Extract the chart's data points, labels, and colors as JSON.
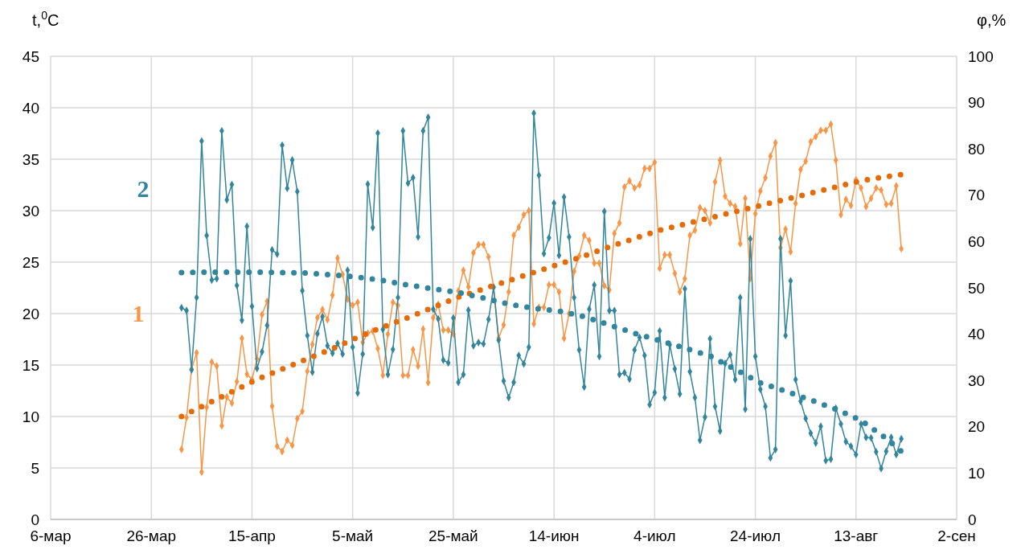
{
  "chart_data": {
    "type": "line",
    "ylabel": "t,$^{0}$C",
    "y2label": "φ,%",
    "xlim": [
      "--03-06",
      "--09-02"
    ],
    "xticks": [
      {
        "value": "--03-06",
        "label": "6-мар"
      },
      {
        "value": "--03-26",
        "label": "26-мар"
      },
      {
        "value": "--04-15",
        "label": "15-апр"
      },
      {
        "value": "--05-05",
        "label": "5-май"
      },
      {
        "value": "--05-25",
        "label": "25-май"
      },
      {
        "value": "--06-14",
        "label": "14-июн"
      },
      {
        "value": "--07-04",
        "label": "4-июл"
      },
      {
        "value": "--07-24",
        "label": "24-июл"
      },
      {
        "value": "--08-13",
        "label": "13-авг"
      },
      {
        "value": "--09-02",
        "label": "2-сен"
      }
    ],
    "ylim": [
      0,
      45
    ],
    "yticks": [
      0,
      5,
      10,
      15,
      20,
      25,
      30,
      35,
      40,
      45
    ],
    "y2lim": [
      0,
      100
    ],
    "y2ticks": [
      0,
      10,
      20,
      30,
      40,
      50,
      60,
      70,
      80,
      90,
      100
    ],
    "grid": true,
    "marker": "diamond",
    "x": [
      "--04-01",
      "--04-02",
      "--04-03",
      "--04-04",
      "--04-05",
      "--04-06",
      "--04-07",
      "--04-08",
      "--04-09",
      "--04-10",
      "--04-11",
      "--04-12",
      "--04-13",
      "--04-14",
      "--04-15",
      "--04-16",
      "--04-17",
      "--04-18",
      "--04-19",
      "--04-20",
      "--04-21",
      "--04-22",
      "--04-23",
      "--04-24",
      "--04-25",
      "--04-26",
      "--04-27",
      "--04-28",
      "--04-29",
      "--04-30",
      "--05-01",
      "--05-02",
      "--05-03",
      "--05-04",
      "--05-05",
      "--05-06",
      "--05-07",
      "--05-08",
      "--05-09",
      "--05-10",
      "--05-11",
      "--05-12",
      "--05-13",
      "--05-14",
      "--05-15",
      "--05-16",
      "--05-17",
      "--05-18",
      "--05-19",
      "--05-20",
      "--05-21",
      "--05-22",
      "--05-23",
      "--05-24",
      "--05-25",
      "--05-26",
      "--05-27",
      "--05-28",
      "--05-29",
      "--05-30",
      "--05-31",
      "--06-01",
      "--06-02",
      "--06-03",
      "--06-04",
      "--06-05",
      "--06-06",
      "--06-07",
      "--06-08",
      "--06-09",
      "--06-10",
      "--06-11",
      "--06-12",
      "--06-13",
      "--06-14",
      "--06-15",
      "--06-16",
      "--06-17",
      "--06-18",
      "--06-19",
      "--06-20",
      "--06-21",
      "--06-22",
      "--06-23",
      "--06-24",
      "--06-25",
      "--06-26",
      "--06-27",
      "--06-28",
      "--06-29",
      "--06-30",
      "--07-01",
      "--07-02",
      "--07-03",
      "--07-04",
      "--07-05",
      "--07-06",
      "--07-07",
      "--07-08",
      "--07-09",
      "--07-10",
      "--07-11",
      "--07-12",
      "--07-13",
      "--07-14",
      "--07-15",
      "--07-16",
      "--07-17",
      "--07-18",
      "--07-19",
      "--07-20",
      "--07-21",
      "--07-22",
      "--07-23",
      "--07-24",
      "--07-25",
      "--07-26",
      "--07-27",
      "--07-28",
      "--07-29",
      "--07-30",
      "--07-31",
      "--08-01",
      "--08-02",
      "--08-03",
      "--08-04",
      "--08-05",
      "--08-06",
      "--08-07",
      "--08-08",
      "--08-09",
      "--08-10",
      "--08-11",
      "--08-12",
      "--08-13",
      "--08-14",
      "--08-15",
      "--08-16",
      "--08-17",
      "--08-18",
      "--08-19",
      "--08-20",
      "--08-21",
      "--08-22"
    ],
    "series": [
      {
        "name": "1",
        "color": "#f79646",
        "values": [
          6.8,
          9.9,
          14.6,
          16.2,
          4.6,
          10.9,
          15.3,
          14.9,
          9.1,
          11.9,
          11.3,
          13.4,
          17.6,
          14.1,
          13.6,
          15.6,
          19.9,
          21.2,
          11.0,
          7.1,
          6.6,
          7.7,
          7.2,
          9.8,
          10.5,
          14.4,
          17.0,
          19.6,
          20.4,
          19.4,
          21.8,
          25.4,
          23.8,
          21.4,
          20.8,
          21.1,
          17.2,
          18.1,
          18.3,
          16.6,
          14.0,
          18.0,
          21.1,
          20.8,
          14.0,
          14.0,
          16.5,
          14.9,
          18.5,
          13.3,
          19.6,
          20.9,
          18.4,
          18.4,
          18.0,
          22.2,
          24.2,
          22.6,
          25.9,
          26.7,
          26.7,
          25.5,
          22.6,
          17.6,
          18.9,
          22.1,
          27.6,
          28.4,
          29.6,
          30.0,
          19.0,
          20.6,
          20.6,
          22.8,
          22.8,
          22.1,
          17.6,
          20.0,
          24.1,
          25.6,
          27.6,
          27.1,
          24.9,
          24.9,
          22.7,
          22.3,
          27.8,
          28.8,
          32.3,
          32.9,
          32.2,
          32.5,
          34.1,
          34.1,
          34.7,
          24.4,
          25.7,
          25.7,
          23.9,
          22.1,
          23.4,
          27.6,
          28.1,
          30.3,
          30.0,
          28.8,
          32.8,
          34.9,
          31.4,
          30.7,
          30.4,
          26.8,
          31.2,
          23.4,
          29.7,
          31.9,
          33.2,
          35.3,
          36.6,
          26.4,
          28.2,
          26.0,
          30.7,
          34.0,
          34.8,
          36.7,
          37.2,
          37.8,
          37.8,
          38.4,
          34.9,
          29.6,
          31.1,
          30.5,
          33.0,
          32.2,
          30.4,
          31.2,
          32.2,
          32.0,
          30.6,
          30.7,
          32.4,
          26.3
        ]
      },
      {
        "name": "2",
        "color": "#31859c",
        "axis": "y2",
        "values": [
          45.7,
          45.1,
          32.3,
          47.9,
          81.7,
          61.3,
          51.7,
          52.0,
          83.9,
          69.0,
          72.3,
          50.5,
          43.0,
          63.3,
          46.0,
          32.6,
          36.2,
          41.9,
          58.2,
          57.3,
          80.8,
          71.5,
          77.6,
          70.8,
          49.4,
          39.7,
          31.8,
          40.1,
          43.8,
          37.5,
          35.9,
          38.0,
          35.7,
          53.8,
          37.2,
          27.3,
          35.7,
          72.4,
          63.0,
          83.4,
          41.0,
          31.3,
          36.7,
          47.9,
          83.9,
          72.6,
          73.8,
          61.0,
          83.9,
          86.8,
          45.4,
          43.3,
          34.4,
          33.8,
          43.5,
          29.6,
          31.3,
          45.2,
          37.5,
          38.2,
          37.9,
          43.2,
          50.1,
          38.7,
          29.9,
          26.3,
          29.6,
          35.4,
          33.6,
          37.2,
          87.7,
          74.3,
          57.4,
          60.8,
          68.3,
          57.0,
          69.6,
          61.0,
          47.9,
          36.6,
          28.6,
          45.4,
          50.6,
          35.2,
          66.5,
          45.1,
          45.1,
          31.3,
          31.7,
          30.3,
          36.6,
          39.3,
          35.4,
          24.8,
          27.4,
          40.7,
          26.3,
          37.7,
          32.5,
          27.1,
          49.8,
          31.9,
          26.3,
          17.1,
          22.1,
          39.0,
          24.4,
          19.1,
          33.7,
          35.6,
          30.2,
          47.9,
          23.8,
          60.6,
          35.2,
          28.1,
          24.4,
          13.3,
          15.1,
          60.6,
          39.7,
          51.5,
          30.2,
          25.5,
          21.8,
          18.6,
          16.5,
          20.1,
          12.7,
          13.0,
          24.0,
          20.6,
          16.8,
          15.8,
          14.0,
          20.6,
          17.7,
          17.6,
          14.6,
          11.0,
          14.7,
          17.7,
          14.0,
          17.4
        ]
      },
      {
        "color": "#e36c09",
        "marker": "none",
        "line_style": "dotted",
        "x": [
          "--04-01",
          "--04-06",
          "--04-11",
          "--04-16",
          "--04-21",
          "--04-26",
          "--05-01",
          "--05-06",
          "--05-11",
          "--05-16",
          "--05-21",
          "--05-26",
          "--05-31",
          "--06-05",
          "--06-10",
          "--06-15",
          "--06-20",
          "--06-25",
          "--06-30",
          "--07-05",
          "--07-10",
          "--07-15",
          "--07-20",
          "--07-25",
          "--07-30",
          "--08-04",
          "--08-09",
          "--08-14",
          "--08-19",
          "--08-22"
        ],
        "values": [
          10.0,
          11.2,
          12.4,
          13.6,
          14.6,
          15.6,
          16.6,
          17.7,
          18.7,
          19.6,
          20.6,
          21.6,
          22.4,
          23.2,
          24.0,
          24.8,
          25.6,
          26.5,
          27.3,
          28.1,
          28.7,
          29.3,
          29.9,
          30.5,
          31.1,
          31.7,
          32.3,
          32.9,
          33.3,
          33.5
        ]
      },
      {
        "color": "#31859c",
        "axis": "y2",
        "marker": "none",
        "line_style": "dotted",
        "x": [
          "--04-01",
          "--04-06",
          "--04-11",
          "--04-16",
          "--04-21",
          "--04-26",
          "--05-01",
          "--05-06",
          "--05-11",
          "--05-16",
          "--05-21",
          "--05-26",
          "--05-31",
          "--06-05",
          "--06-10",
          "--06-15",
          "--06-20",
          "--06-25",
          "--06-30",
          "--07-05",
          "--07-10",
          "--07-15",
          "--07-20",
          "--07-25",
          "--07-30",
          "--08-04",
          "--08-09",
          "--08-14",
          "--08-19",
          "--08-22"
        ],
        "values": [
          53.3,
          53.4,
          53.4,
          53.4,
          53.3,
          53.2,
          52.8,
          52.3,
          51.6,
          50.6,
          49.8,
          49.0,
          47.8,
          46.5,
          45.6,
          45.0,
          43.8,
          42.0,
          40.2,
          38.6,
          37.0,
          35.3,
          32.4,
          29.5,
          27.7,
          25.8,
          23.8,
          21.4,
          17.5,
          14.7
        ]
      }
    ]
  }
}
